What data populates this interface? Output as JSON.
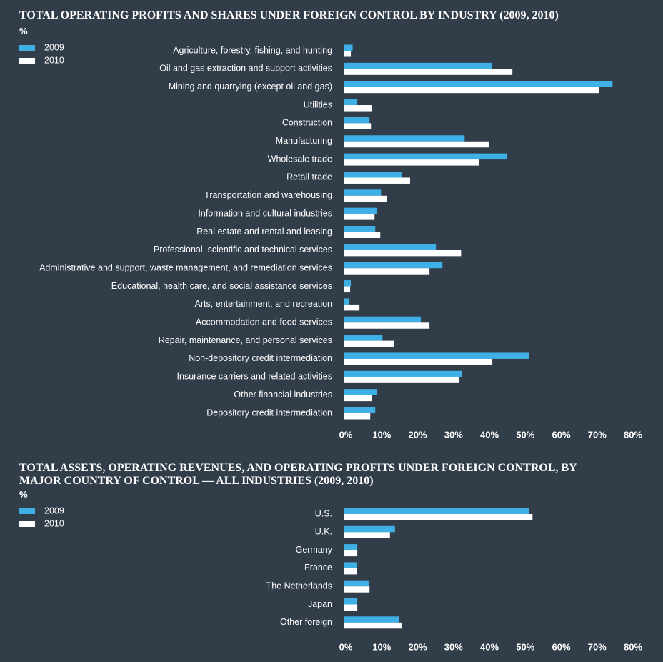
{
  "chart_data": [
    {
      "type": "bar",
      "orientation": "horizontal",
      "title": "TOTAL OPERATING PROFITS AND SHARES UNDER FOREIGN CONTROL BY INDUSTRY (2009, 2010)",
      "unit": "%",
      "legend": "top-left",
      "categories": [
        "Agriculture, forestry, fishing, and hunting",
        "Oil and gas extraction and support activities",
        "Mining and quarrying (except oil and gas)",
        "Utilities",
        "Construction",
        "Manufacturing",
        "Wholesale trade",
        "Retail trade",
        "Transportation and warehousing",
        "Information and cultural industries",
        "Real estate and rental and leasing",
        "Professional, scientific and technical services",
        "Administrative and support, waste management, and remediation services",
        "Educational, health care, and social assistance services",
        "Arts, entertainment, and recreation",
        "Accommodation and food services",
        "Repair, maintenance, and personal services",
        "Non-depository credit intermediation",
        "Insurance carriers and related activities",
        "Other financial industries",
        "Depository credit intermediation"
      ],
      "series": [
        {
          "name": "2009",
          "color": "#3fb0e5",
          "values": [
            2.5,
            41.4,
            74.9,
            3.8,
            7.2,
            33.7,
            45.4,
            16.1,
            10.4,
            9.2,
            8.8,
            25.7,
            27.5,
            2.0,
            1.6,
            21.5,
            10.8,
            51.6,
            32.9,
            9.2,
            8.8
          ]
        },
        {
          "name": "2010",
          "color": "#ffffff",
          "values": [
            2.0,
            47.0,
            71.1,
            7.8,
            7.6,
            40.4,
            37.8,
            18.5,
            12.0,
            8.6,
            10.2,
            32.7,
            23.9,
            1.8,
            4.4,
            23.9,
            14.1,
            41.4,
            32.1,
            7.8,
            7.4
          ]
        }
      ],
      "xlim": [
        0,
        80
      ],
      "xticks": [
        {
          "value": 0,
          "label": "0%"
        },
        {
          "value": 10,
          "label": "10%"
        },
        {
          "value": 20,
          "label": "20%"
        },
        {
          "value": 30,
          "label": "30%"
        },
        {
          "value": 40,
          "label": "40%"
        },
        {
          "value": 50,
          "label": "50%"
        },
        {
          "value": 60,
          "label": "60%"
        },
        {
          "value": 70,
          "label": "70%"
        },
        {
          "value": 80,
          "label": "80%"
        }
      ],
      "grid": false
    },
    {
      "type": "bar",
      "orientation": "horizontal",
      "title": "TOTAL ASSETS, OPERATING REVENUES, AND OPERATING PROFITS UNDER FOREIGN CONTROL, BY MAJOR COUNTRY OF CONTROL — ALL INDUSTRIES (2009, 2010)",
      "unit": "%",
      "legend": "top-left",
      "categories": [
        "U.S.",
        "U.K.",
        "Germany",
        "France",
        "The Netherlands",
        "Japan",
        "Other foreign"
      ],
      "series": [
        {
          "name": "2009",
          "color": "#3fb0e5",
          "values": [
            51.6,
            14.3,
            3.8,
            3.6,
            7.0,
            3.8,
            15.5
          ]
        },
        {
          "name": "2010",
          "color": "#ffffff",
          "values": [
            52.6,
            12.9,
            3.8,
            3.6,
            7.2,
            3.8,
            16.1
          ]
        }
      ],
      "xlim": [
        0,
        80
      ],
      "xticks": [
        {
          "value": 0,
          "label": "0%"
        },
        {
          "value": 10,
          "label": "10%"
        },
        {
          "value": 20,
          "label": "20%"
        },
        {
          "value": 30,
          "label": "30%"
        },
        {
          "value": 40,
          "label": "40%"
        },
        {
          "value": 50,
          "label": "50%"
        },
        {
          "value": 60,
          "label": "60%"
        },
        {
          "value": 70,
          "label": "70%"
        },
        {
          "value": 80,
          "label": "80%"
        }
      ],
      "grid": false
    }
  ]
}
